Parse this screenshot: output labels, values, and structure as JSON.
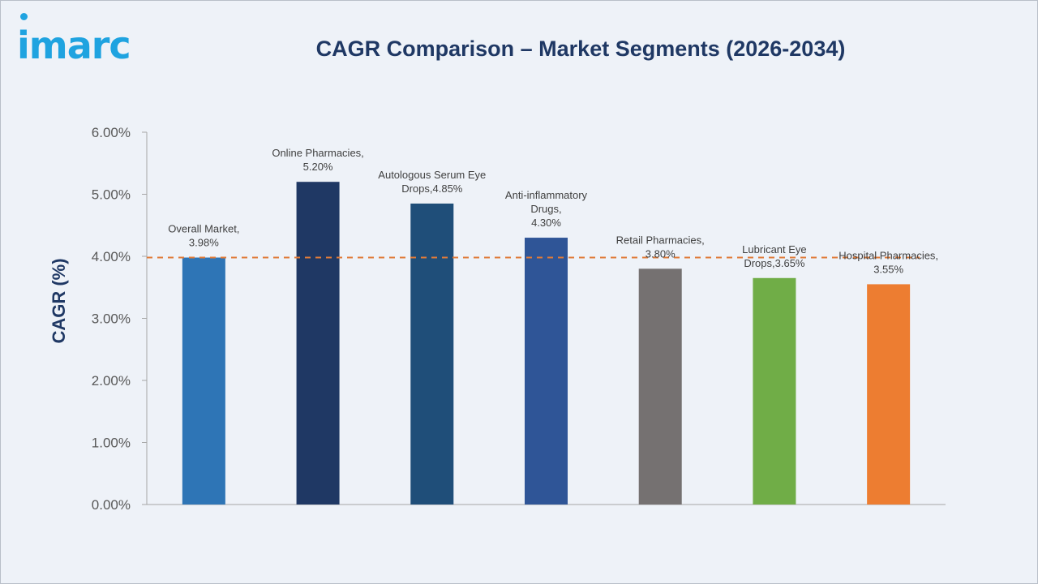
{
  "header": {
    "logo_text": "imarc",
    "title": "CAGR Comparison – Market Segments (2026-2034)"
  },
  "chart_data": {
    "type": "bar",
    "title": "CAGR Comparison – Market Segments (2026-2034)",
    "xlabel": "",
    "ylabel": "CAGR (%)",
    "ylim": [
      0,
      6
    ],
    "y_ticks": [
      0,
      1,
      2,
      3,
      4,
      5,
      6
    ],
    "y_tick_labels": [
      "0.00%",
      "1.00%",
      "2.00%",
      "3.00%",
      "4.00%",
      "5.00%",
      "6.00%"
    ],
    "grid": false,
    "reference_line": {
      "value": 3.98,
      "style": "dashed",
      "color": "#e07b39"
    },
    "categories": [
      "Overall Market",
      "Online Pharmacies",
      "Autologous Serum Eye Drops",
      "Anti-inflammatory Drugs",
      "Retail Pharmacies",
      "Lubricant Eye Drops",
      "Hospital Pharmacies"
    ],
    "values": [
      3.98,
      5.2,
      4.85,
      4.3,
      3.8,
      3.65,
      3.55
    ],
    "colors": [
      "#2e75b6",
      "#1f3864",
      "#1f4e79",
      "#2f5597",
      "#757171",
      "#70ad47",
      "#ed7d31"
    ],
    "data_labels": [
      [
        "Overall Market,",
        "3.98%"
      ],
      [
        "Online Pharmacies,",
        "5.20%"
      ],
      [
        "Autologous Serum Eye",
        "Drops,4.85%"
      ],
      [
        "Anti-inflammatory",
        "Drugs,",
        "4.30%"
      ],
      [
        "Retail Pharmacies,",
        "3.80%"
      ],
      [
        "Lubricant Eye",
        "Drops,3.65%"
      ],
      [
        "Hospital Pharmacies,",
        "3.55%"
      ]
    ]
  }
}
